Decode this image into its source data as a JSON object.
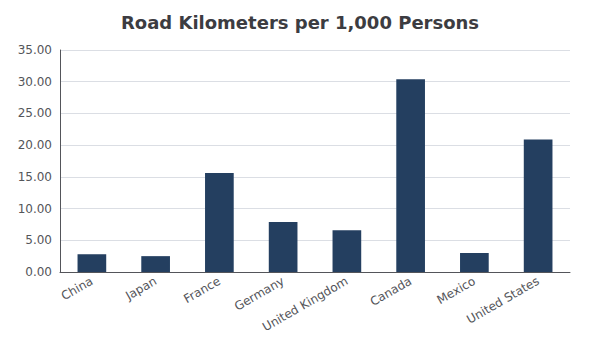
{
  "chart_data": {
    "type": "bar",
    "title": "Road Kilometers per 1,000 Persons",
    "categories": [
      "China",
      "Japan",
      "France",
      "Germany",
      "United Kingdom",
      "Canada",
      "Mexico",
      "United States"
    ],
    "values": [
      2.8,
      2.5,
      15.6,
      7.9,
      6.6,
      30.4,
      3.0,
      20.9
    ],
    "color": "#243F60",
    "ylim": [
      0,
      35.0
    ],
    "yticks": [
      {
        "value": 0.0,
        "label": "0.00"
      },
      {
        "value": 5.0,
        "label": "5.00"
      },
      {
        "value": 10.0,
        "label": "10.00"
      },
      {
        "value": 15.0,
        "label": "15.00"
      },
      {
        "value": 20.0,
        "label": "20.00"
      },
      {
        "value": 25.0,
        "label": "25.00"
      },
      {
        "value": 30.0,
        "label": "30.00"
      },
      {
        "value": 35.0,
        "label": "35.00"
      }
    ],
    "grid": true
  }
}
